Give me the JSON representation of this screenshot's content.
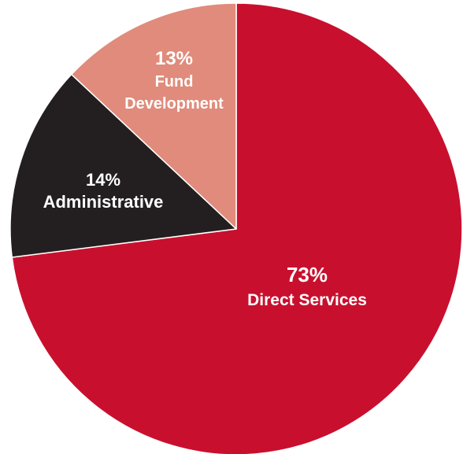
{
  "chart_data": {
    "type": "pie",
    "title": "",
    "start_angle_deg": 0,
    "direction": "clockwise",
    "slices": [
      {
        "label": "Direct Services",
        "value": 73,
        "value_label": "73%",
        "color": "#c8102e"
      },
      {
        "label": "Administrative",
        "value": 14,
        "value_label": "14%",
        "color": "#231f20"
      },
      {
        "label": "Fund Development",
        "label_lines": [
          "Fund",
          "Development"
        ],
        "value": 13,
        "value_label": "13%",
        "color": "#e08b7b"
      }
    ],
    "stroke_color": "#ffffff"
  }
}
